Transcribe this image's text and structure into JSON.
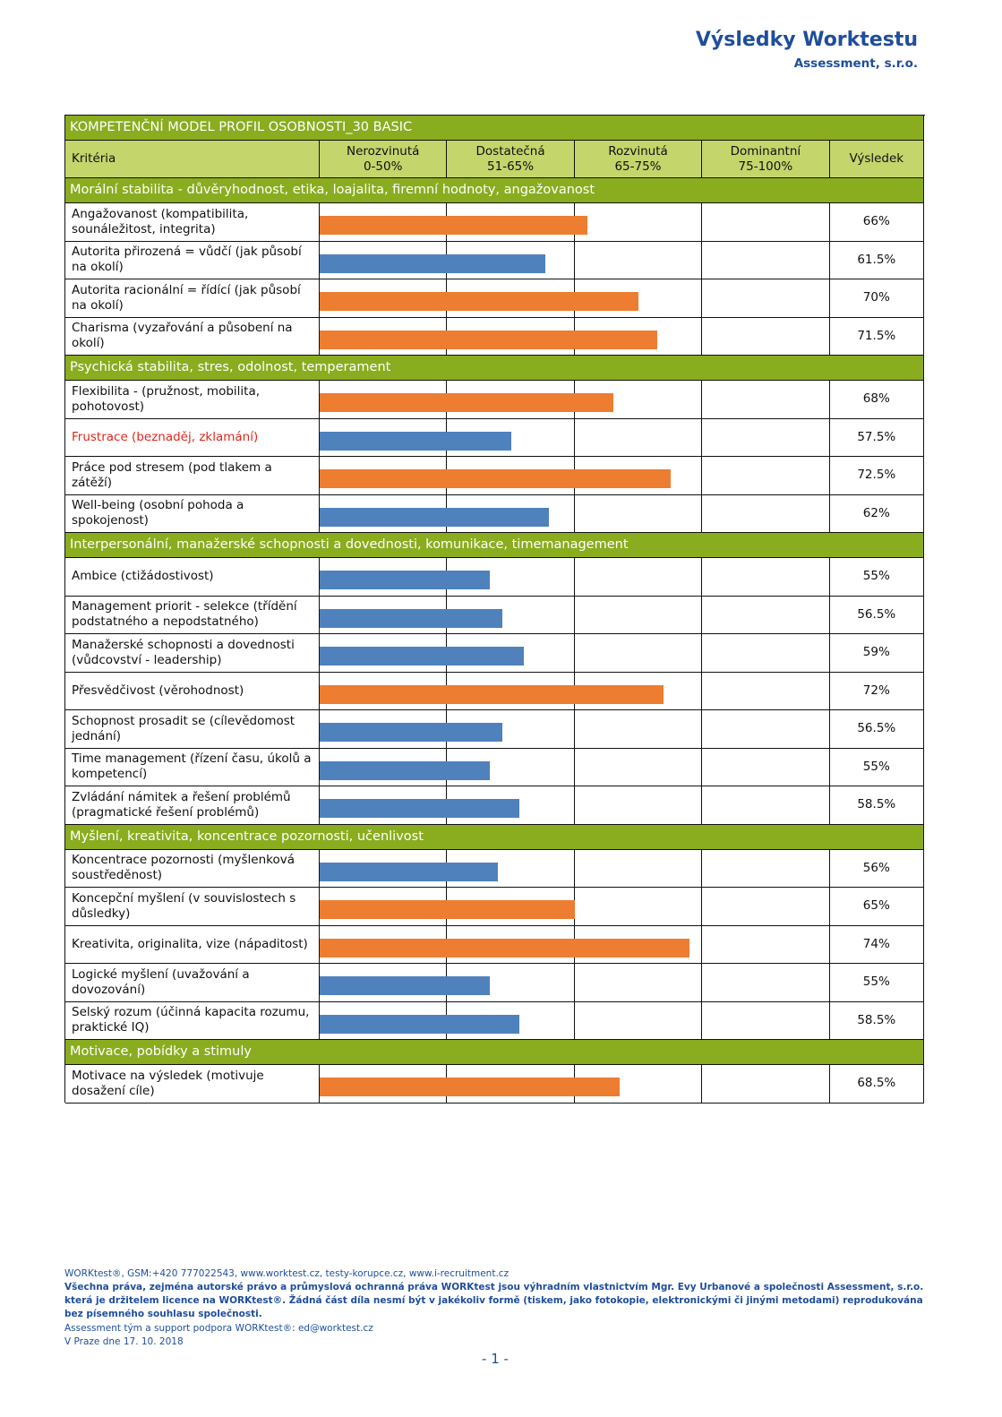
{
  "header": {
    "title": "Výsledky Worktestu",
    "company": "Assessment, s.r.o."
  },
  "table": {
    "title": "KOMPETENČNÍ MODEL PROFIL OSOBNOSTI_30 BASIC",
    "criteria_header": "Kritéria",
    "result_header": "Výsledek",
    "levels": [
      {
        "name": "Nerozvinutá",
        "range": "0-50%"
      },
      {
        "name": "Dostatečná",
        "range": "51-65%"
      },
      {
        "name": "Rozvinutá",
        "range": "65-75%"
      },
      {
        "name": "Dominantní",
        "range": "75-100%"
      }
    ],
    "sections": [
      {
        "title": "Morální stabilita - důvěryhodnost, etika, loajalita, firemní hodnoty, angažovanost",
        "items": [
          {
            "label": "Angažovanost (kompatibilita, sounáležitost, integrita)",
            "value": 66,
            "value_label": "66%",
            "color": "#ed7d31"
          },
          {
            "label": "Autorita přirozená = vůdčí (jak působí na okolí)",
            "value": 61.5,
            "value_label": "61.5%",
            "color": "#4f81bd"
          },
          {
            "label": "Autorita racionální = řídící (jak působí na okolí)",
            "value": 70,
            "value_label": "70%",
            "color": "#ed7d31"
          },
          {
            "label": "Charisma (vyzařování a působení na okolí)",
            "value": 71.5,
            "value_label": "71.5%",
            "color": "#ed7d31"
          }
        ]
      },
      {
        "title": "Psychická stabilita, stres, odolnost, temperament",
        "items": [
          {
            "label": "Flexibilita - (pružnost, mobilita, pohotovost)",
            "value": 68,
            "value_label": "68%",
            "color": "#ed7d31"
          },
          {
            "label": "Frustrace (beznaděj, zklamání)",
            "value": 57.5,
            "value_label": "57.5%",
            "color": "#4f81bd",
            "label_color": "#e0251b"
          },
          {
            "label": "Práce pod stresem (pod tlakem a zátěží)",
            "value": 72.5,
            "value_label": "72.5%",
            "color": "#ed7d31"
          },
          {
            "label": "Well-being (osobní pohoda a spokojenost)",
            "value": 62,
            "value_label": "62%",
            "color": "#4f81bd"
          }
        ]
      },
      {
        "title": "Interpersonální, manažerské schopnosti a dovednosti, komunikace, timemanagement",
        "items": [
          {
            "label": "Ambice (ctižádostivost)",
            "value": 55,
            "value_label": "55%",
            "color": "#4f81bd"
          },
          {
            "label": "Management priorit - selekce (třídění podstatného a nepodstatného)",
            "value": 56.5,
            "value_label": "56.5%",
            "color": "#4f81bd"
          },
          {
            "label": "Manažerské schopnosti a dovednosti (vůdcovství - leadership)",
            "value": 59,
            "value_label": "59%",
            "color": "#4f81bd"
          },
          {
            "label": "Přesvědčivost (věrohodnost)",
            "value": 72,
            "value_label": "72%",
            "color": "#ed7d31"
          },
          {
            "label": "Schopnost prosadit se (cílevědomost jednání)",
            "value": 56.5,
            "value_label": "56.5%",
            "color": "#4f81bd"
          },
          {
            "label": "Time management (řízení času, úkolů a kompetencí)",
            "value": 55,
            "value_label": "55%",
            "color": "#4f81bd"
          },
          {
            "label": "Zvládání námitek a řešení problémů (pragmatické řešení problémů)",
            "value": 58.5,
            "value_label": "58.5%",
            "color": "#4f81bd"
          }
        ]
      },
      {
        "title": "Myšlení, kreativita, koncentrace pozornosti, učenlivost",
        "items": [
          {
            "label": "Koncentrace pozornosti (myšlenková soustředěnost)",
            "value": 56,
            "value_label": "56%",
            "color": "#4f81bd"
          },
          {
            "label": "Koncepční myšlení (v souvislostech s důsledky)",
            "value": 65,
            "value_label": "65%",
            "color": "#ed7d31"
          },
          {
            "label": "Kreativita, originalita, vize (nápaditost)",
            "value": 74,
            "value_label": "74%",
            "color": "#ed7d31"
          },
          {
            "label": "Logické myšlení (uvažování a dovozování)",
            "value": 55,
            "value_label": "55%",
            "color": "#4f81bd"
          },
          {
            "label": "Selský rozum (účinná kapacita rozumu, praktické IQ)",
            "value": 58.5,
            "value_label": "58.5%",
            "color": "#4f81bd"
          }
        ]
      },
      {
        "title": "Motivace, pobídky a stimuly",
        "items": [
          {
            "label": "Motivace na výsledek (motivuje dosažení cíle)",
            "value": 68.5,
            "value_label": "68.5%",
            "color": "#ed7d31"
          }
        ]
      }
    ]
  },
  "footer": {
    "contact": "WORKtest®, GSM:+420 777022543, www.worktest.cz, testy-korupce.cz, www.i-recruitment.cz",
    "rights": "Všechna práva, zejména autorské právo a průmyslová ochranná práva WORKtest jsou výhradním vlastnictvím Mgr. Evy Urbanové a společnosti Assessment, s.r.o. která je držitelem licence na WORKtest®. Žádná část díla nesmí být v jakékoliv formě (tiskem, jako fotokopie, elektronickými či jinými metodami) reprodukována bez písemného souhlasu společnosti.",
    "support": "Assessment tým a support podpora WORKtest®: ed@worktest.cz",
    "date": "V Praze dne 17. 10. 2018",
    "page": "- 1 -"
  }
}
